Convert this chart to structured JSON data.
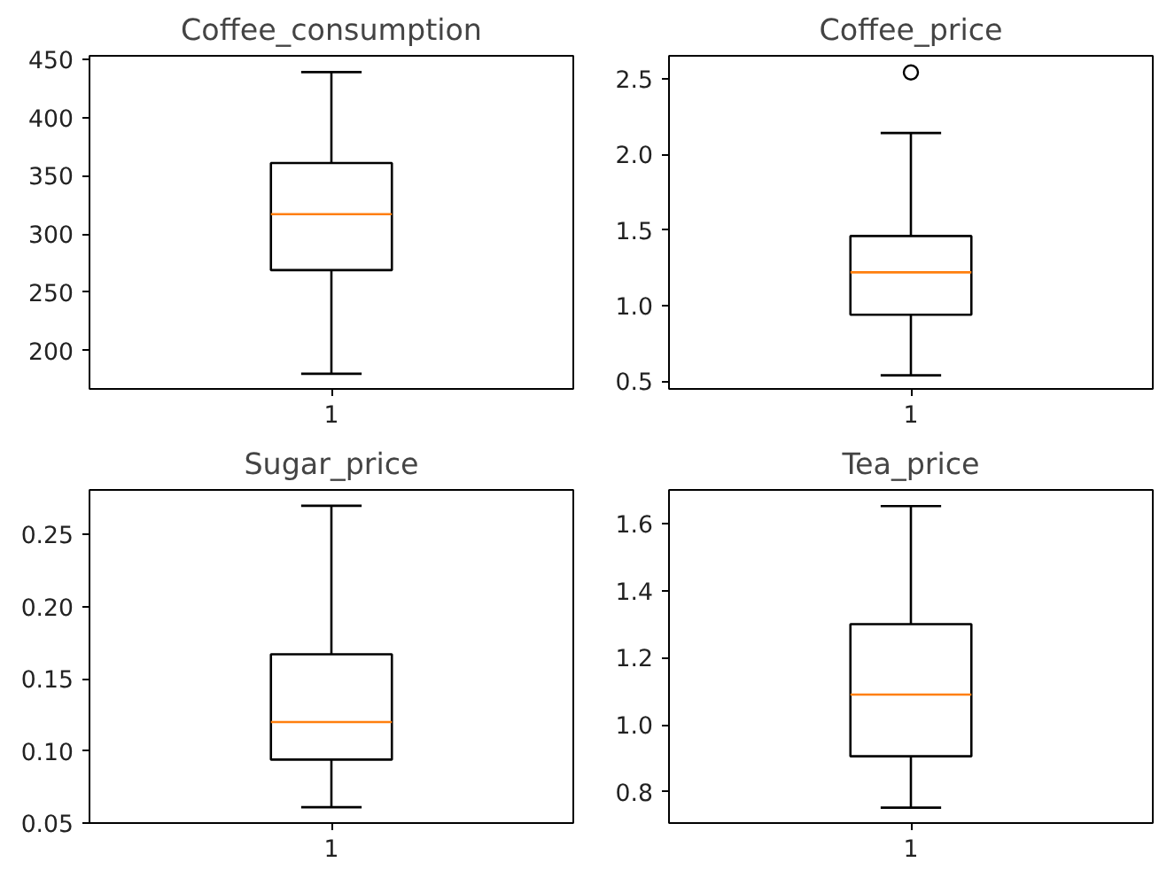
{
  "chart_data": [
    {
      "type": "box",
      "title": "Coffee_consumption",
      "categories": [
        "1"
      ],
      "boxes": [
        {
          "low": 180,
          "q1": 269,
          "median": 317,
          "q3": 361,
          "high": 439
        }
      ],
      "ylim": [
        167,
        453
      ],
      "yticks": [
        200,
        250,
        300,
        350,
        400,
        450
      ],
      "grid": false
    },
    {
      "type": "box",
      "title": "Coffee_price",
      "categories": [
        "1"
      ],
      "boxes": [
        {
          "low": 0.54,
          "q1": 0.94,
          "median": 1.22,
          "q3": 1.46,
          "high": 2.14,
          "outliers": [
            2.54
          ]
        }
      ],
      "ylim": [
        0.45,
        2.65
      ],
      "yticks": [
        {
          "value": 0.5,
          "label": "0.5"
        },
        {
          "value": 1,
          "label": "1.0"
        },
        {
          "value": 1.5,
          "label": "1.5"
        },
        {
          "value": 2,
          "label": "2.0"
        },
        {
          "value": 2.5,
          "label": "2.5"
        }
      ],
      "grid": false
    },
    {
      "type": "box",
      "title": "Sugar_price",
      "categories": [
        "1"
      ],
      "boxes": [
        {
          "low": 0.061,
          "q1": 0.094,
          "median": 0.12,
          "q3": 0.167,
          "high": 0.27
        }
      ],
      "ylim": [
        0.05,
        0.281
      ],
      "yticks": [
        {
          "value": 0.05,
          "label": "0.05"
        },
        {
          "value": 0.1,
          "label": "0.10"
        },
        {
          "value": 0.15,
          "label": "0.15"
        },
        {
          "value": 0.2,
          "label": "0.20"
        },
        {
          "value": 0.25,
          "label": "0.25"
        }
      ],
      "grid": false
    },
    {
      "type": "box",
      "title": "Tea_price",
      "categories": [
        "1"
      ],
      "boxes": [
        {
          "low": 0.753,
          "q1": 0.906,
          "median": 1.09,
          "q3": 1.3,
          "high": 1.652
        }
      ],
      "ylim": [
        0.707,
        1.7
      ],
      "yticks": [
        {
          "value": 0.8,
          "label": "0.8"
        },
        {
          "value": 1,
          "label": "1.0"
        },
        {
          "value": 1.2,
          "label": "1.2"
        },
        {
          "value": 1.4,
          "label": "1.4"
        },
        {
          "value": 1.6,
          "label": "1.6"
        }
      ],
      "grid": false
    }
  ]
}
